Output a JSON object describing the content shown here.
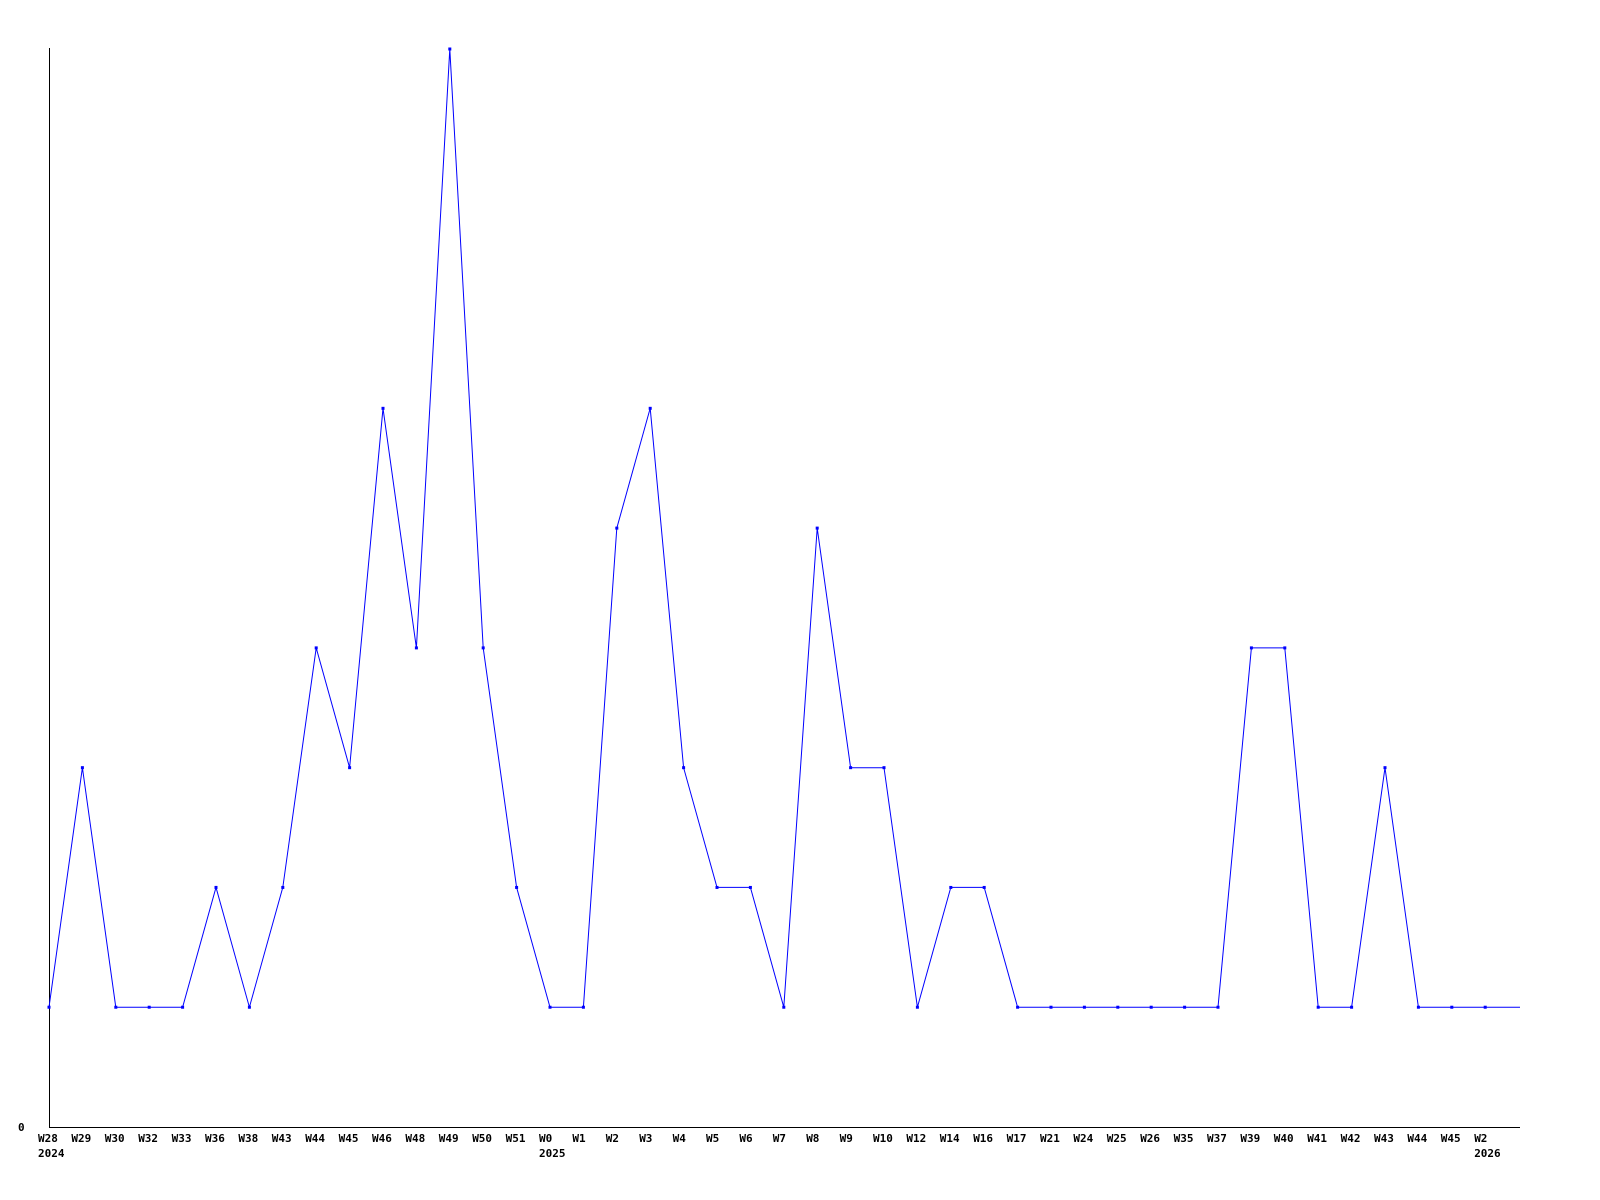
{
  "chart_data": {
    "type": "line",
    "title": "",
    "xlabel": "",
    "ylabel": "",
    "y_tick_labels": [
      "0"
    ],
    "ylim": [
      0,
      9
    ],
    "grid": false,
    "line_color": "#0000ff",
    "categories": [
      "W28",
      "W29",
      "W30",
      "W32",
      "W33",
      "W36",
      "W38",
      "W43",
      "W44",
      "W45",
      "W46",
      "W48",
      "W49",
      "W50",
      "W51",
      "W0",
      "W1",
      "W2",
      "W3",
      "W4",
      "W5",
      "W6",
      "W7",
      "W8",
      "W9",
      "W10",
      "W12",
      "W14",
      "W16",
      "W17",
      "W21",
      "W24",
      "W25",
      "W26",
      "W35",
      "W37",
      "W39",
      "W40",
      "W41",
      "W42",
      "W43",
      "W44",
      "W45",
      "W2"
    ],
    "year_labels": [
      {
        "index": 0,
        "label": "2024"
      },
      {
        "index": 15,
        "label": "2025"
      },
      {
        "index": 43,
        "label": "2026"
      }
    ],
    "series": [
      {
        "values": [
          1,
          3,
          1,
          1,
          1,
          2,
          1,
          2,
          4,
          3,
          6,
          4,
          9,
          4,
          2,
          1,
          1,
          5,
          6,
          3,
          2,
          2,
          1,
          5,
          3,
          3,
          1,
          2,
          2,
          1,
          1,
          1,
          1,
          1,
          1,
          1,
          4,
          4,
          1,
          1,
          3,
          1,
          1,
          1
        ]
      }
    ]
  }
}
